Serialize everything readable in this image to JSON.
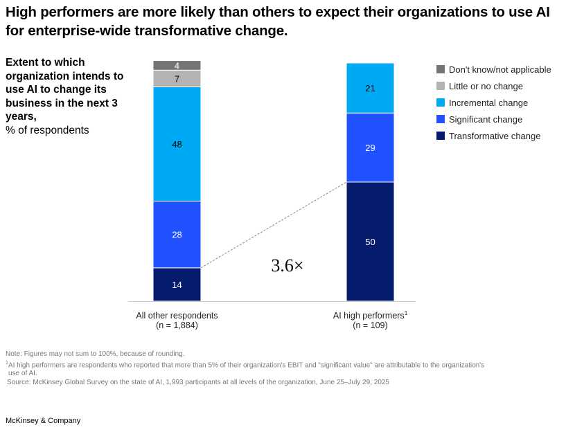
{
  "title": "High performers are more likely than others to expect their organizations to use AI for enterprise-wide transformative change.",
  "subtitle": {
    "bold": "Extent to which organization intends to use AI to change its business in the next 3 years,",
    "unit": "% of respondents"
  },
  "chart_data": {
    "type": "bar",
    "stacked": true,
    "categories": [
      {
        "label": "All other respondents",
        "n": "(n = 1,884)"
      },
      {
        "label": "AI high performers",
        "sup": "1",
        "n": "(n = 109)"
      }
    ],
    "series": [
      {
        "name": "Transformative change",
        "color": "#051C6E",
        "values": [
          14,
          50
        ],
        "label_color": "#ffffff"
      },
      {
        "name": "Significant change",
        "color": "#2251FF",
        "values": [
          28,
          29
        ],
        "label_color": "#ffffff"
      },
      {
        "name": "Incremental change",
        "color": "#00A9F4",
        "values": [
          48,
          21
        ],
        "label_color": "#000000"
      },
      {
        "name": "Little or no change",
        "color": "#B3B3B3",
        "values": [
          7,
          null
        ],
        "label_color": "#000000"
      },
      {
        "name": "Don't know/not applicable",
        "color": "#757575",
        "values": [
          4,
          null
        ],
        "label_color": "#ffffff"
      }
    ],
    "legend_order": [
      "Don't know/not applicable",
      "Little or no change",
      "Incremental change",
      "Significant change",
      "Transformative change"
    ],
    "legend_position": "right",
    "annotation": "3.6×",
    "ylim": [
      0,
      100
    ],
    "grid": false
  },
  "footer": {
    "note": "Note: Figures may not sum to 100%, because of rounding.",
    "footnote_mark": "1",
    "footnote": "AI high performers are respondents who reported that more than 5% of their organization's EBIT and \"significant value\" are attributable to the organization's",
    "footnote_cont": "use of AI.",
    "source": "Source: McKinsey Global Survey on the state of AI, 1,993 participants at all levels of the organization, June 25–July 29, 2025"
  },
  "brand": "McKinsey & Company"
}
